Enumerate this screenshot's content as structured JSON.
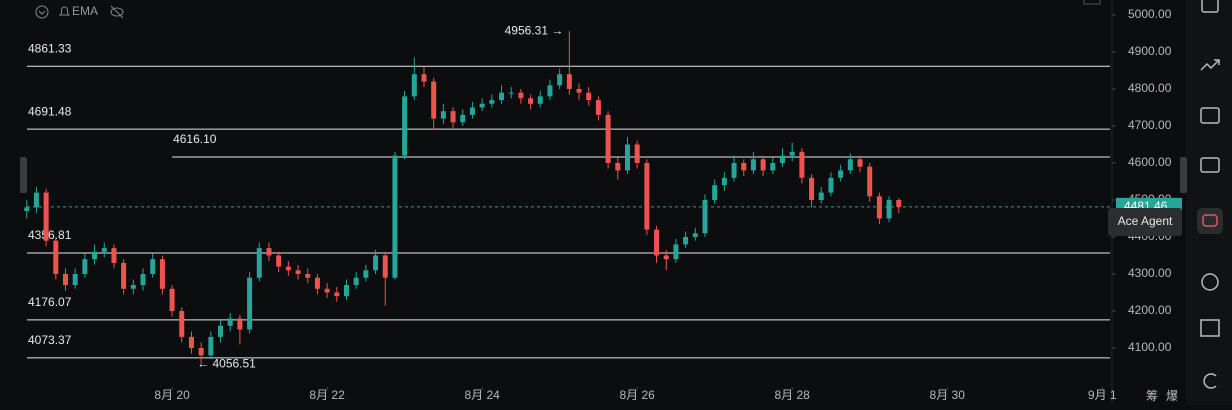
{
  "toolbar": {
    "indicator": "EMA"
  },
  "chart_data": {
    "type": "candlestick",
    "x": [
      18.125,
      18.25,
      18.375,
      18.5,
      18.625,
      18.75,
      18.875,
      19,
      19.125,
      19.25,
      19.375,
      19.5,
      19.625,
      19.75,
      19.875,
      20,
      20.125,
      20.25,
      20.375,
      20.5,
      20.625,
      20.75,
      20.875,
      21,
      21.125,
      21.25,
      21.375,
      21.5,
      21.625,
      21.75,
      21.875,
      22,
      22.125,
      22.25,
      22.375,
      22.5,
      22.625,
      22.75,
      22.875,
      23,
      23.125,
      23.25,
      23.375,
      23.5,
      23.625,
      23.75,
      23.875,
      24,
      24.125,
      24.25,
      24.375,
      24.5,
      24.625,
      24.75,
      24.875,
      25,
      25.125,
      25.25,
      25.375,
      25.5,
      25.625,
      25.75,
      25.875,
      26,
      26.125,
      26.25,
      26.375,
      26.5,
      26.625,
      26.75,
      26.875,
      27,
      27.125,
      27.25,
      27.375,
      27.5,
      27.625,
      27.75,
      27.875,
      28,
      28.125,
      28.25,
      28.375,
      28.5,
      28.625,
      28.75,
      28.875,
      29,
      29.125,
      29.25,
      29.375
    ],
    "open": [
      4470,
      4480,
      4520,
      4390,
      4300,
      4270,
      4300,
      4340,
      4360,
      4370,
      4330,
      4260,
      4270,
      4300,
      4340,
      4260,
      4200,
      4130,
      4100,
      4080,
      4130,
      4160,
      4180,
      4150,
      4290,
      4370,
      4350,
      4320,
      4310,
      4300,
      4290,
      4260,
      4250,
      4240,
      4270,
      4290,
      4310,
      4350,
      4290,
      4620,
      4780,
      4840,
      4820,
      4720,
      4740,
      4710,
      4730,
      4750,
      4760,
      4770,
      4790,
      4790,
      4775,
      4760,
      4780,
      4810,
      4840,
      4800,
      4790,
      4770,
      4730,
      4600,
      4580,
      4650,
      4600,
      4420,
      4350,
      4340,
      4380,
      4400,
      4410,
      4500,
      4540,
      4560,
      4600,
      4580,
      4610,
      4580,
      4600,
      4620,
      4630,
      4560,
      4500,
      4520,
      4560,
      4580,
      4610,
      4590,
      4510,
      4450,
      4500
    ],
    "high": [
      4500,
      4535,
      4530,
      4400,
      4315,
      4315,
      4355,
      4380,
      4385,
      4380,
      4340,
      4285,
      4315,
      4355,
      4350,
      4270,
      4210,
      4145,
      4115,
      4145,
      4175,
      4195,
      4190,
      4305,
      4385,
      4385,
      4360,
      4335,
      4325,
      4315,
      4300,
      4275,
      4265,
      4285,
      4305,
      4325,
      4365,
      4360,
      4630,
      4795,
      4885,
      4860,
      4830,
      4760,
      4750,
      4745,
      4765,
      4775,
      4785,
      4810,
      4805,
      4800,
      4785,
      4795,
      4825,
      4855,
      4956.31,
      4815,
      4805,
      4780,
      4740,
      4615,
      4670,
      4660,
      4610,
      4430,
      4365,
      4395,
      4415,
      4425,
      4515,
      4555,
      4575,
      4620,
      4610,
      4630,
      4620,
      4615,
      4640,
      4655,
      4640,
      4570,
      4535,
      4575,
      4595,
      4625,
      4620,
      4600,
      4520,
      4510,
      4505
    ],
    "low": [
      4450,
      4465,
      4375,
      4285,
      4255,
      4260,
      4290,
      4325,
      4345,
      4315,
      4245,
      4245,
      4255,
      4290,
      4245,
      4185,
      4115,
      4085,
      4056.51,
      4070,
      4115,
      4145,
      4110,
      4140,
      4280,
      4335,
      4305,
      4295,
      4285,
      4275,
      4245,
      4235,
      4225,
      4230,
      4260,
      4280,
      4300,
      4215,
      4285,
      4610,
      4770,
      4805,
      4690,
      4705,
      4695,
      4700,
      4720,
      4740,
      4750,
      4760,
      4775,
      4760,
      4745,
      4750,
      4770,
      4800,
      4785,
      4770,
      4755,
      4715,
      4585,
      4555,
      4570,
      4585,
      4405,
      4330,
      4310,
      4330,
      4370,
      4390,
      4400,
      4490,
      4525,
      4550,
      4565,
      4570,
      4565,
      4570,
      4590,
      4605,
      4545,
      4480,
      4490,
      4510,
      4550,
      4570,
      4575,
      4495,
      4435,
      4440,
      4465
    ],
    "close": [
      4480,
      4520,
      4390,
      4300,
      4270,
      4300,
      4340,
      4360,
      4370,
      4330,
      4260,
      4270,
      4300,
      4340,
      4260,
      4200,
      4130,
      4100,
      4080,
      4130,
      4160,
      4180,
      4150,
      4290,
      4370,
      4350,
      4320,
      4310,
      4300,
      4290,
      4260,
      4250,
      4240,
      4270,
      4290,
      4310,
      4350,
      4290,
      4620,
      4780,
      4840,
      4820,
      4720,
      4740,
      4710,
      4730,
      4750,
      4760,
      4770,
      4790,
      4790,
      4775,
      4760,
      4780,
      4810,
      4840,
      4800,
      4790,
      4770,
      4730,
      4600,
      4580,
      4650,
      4600,
      4420,
      4350,
      4340,
      4380,
      4400,
      4410,
      4500,
      4540,
      4560,
      4600,
      4580,
      4610,
      4580,
      4600,
      4620,
      4630,
      4560,
      4500,
      4520,
      4560,
      4580,
      4610,
      4590,
      4510,
      4450,
      4500,
      4481.46
    ],
    "up_color": "#26a69a",
    "down_color": "#ef5350",
    "xlim": [
      17.78,
      32.1
    ],
    "xticks": [
      {
        "value": 20,
        "label": "8月 20"
      },
      {
        "value": 22,
        "label": "8月 22"
      },
      {
        "value": 24,
        "label": "8月 24"
      },
      {
        "value": 26,
        "label": "8月 26"
      },
      {
        "value": 28,
        "label": "8月 28"
      },
      {
        "value": 30,
        "label": "8月 30"
      },
      {
        "value": 32,
        "label": "9月 1"
      }
    ],
    "ylim": [
      3994.6,
      5040.5
    ],
    "yticks": [
      {
        "value": 4100,
        "label": "4100.00"
      },
      {
        "value": 4200,
        "label": "4200.00"
      },
      {
        "value": 4300,
        "label": "4300.00"
      },
      {
        "value": 4400,
        "label": "4400.00"
      },
      {
        "value": 4500,
        "label": "4500.00"
      },
      {
        "value": 4600,
        "label": "4600.00"
      },
      {
        "value": 4700,
        "label": "4700.00"
      },
      {
        "value": 4800,
        "label": "4800.00"
      },
      {
        "value": 4900,
        "label": "4900.00"
      },
      {
        "value": 5000,
        "label": "5000.00"
      }
    ],
    "levels": [
      4861.33,
      4691.48,
      {
        "value": 4616.1,
        "label": "4616.10",
        "x_start": 20
      },
      4356.81,
      4176.07,
      4073.37
    ],
    "annotations": [
      {
        "label": "4956.31 →",
        "value": 4956.31,
        "x": 25.125,
        "side": "left"
      },
      {
        "label": "← 4056.51",
        "value": 4056.51,
        "x": 20.375,
        "side": "right"
      }
    ]
  },
  "tooltip": "Ace Agent",
  "side_labels": [
    "筹",
    "爆"
  ]
}
